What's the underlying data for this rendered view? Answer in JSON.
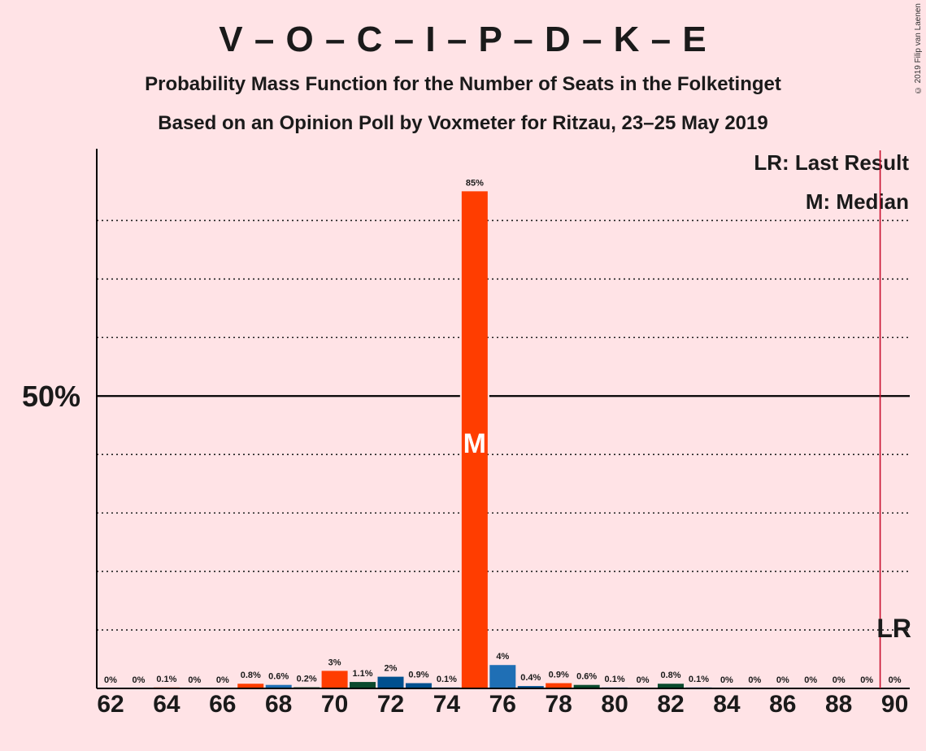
{
  "header": {
    "title": "V – O – C – I – P – D – K – E",
    "subtitle1": "Probability Mass Function for the Number of Seats in the Folketinget",
    "subtitle2": "Based on an Opinion Poll by Voxmeter for Ritzau, 23–25 May 2019",
    "copyright": "© 2019 Filip van Laenen"
  },
  "legend": {
    "last_result": "LR: Last Result",
    "median": "M: Median"
  },
  "markers": {
    "median_letter": "M",
    "last_result_letter": "LR",
    "median_seat": 75,
    "last_result_seat": 90
  },
  "colors": {
    "background": "#FFE3E6",
    "majority_line": "#000000",
    "last_result_line": "#C8102E",
    "bar_palette": [
      "#FF3D00",
      "#1F6FB5",
      "#0B4A2E",
      "#00508F"
    ]
  },
  "chart_data": {
    "type": "bar",
    "title": "V – O – C – I – P – D – K – E",
    "xlabel": "",
    "ylabel": "",
    "ylim": [
      0,
      92
    ],
    "y_tick_label": "50%",
    "majority_value": 50,
    "x_ticks": [
      62,
      64,
      66,
      68,
      70,
      72,
      74,
      76,
      78,
      80,
      82,
      84,
      86,
      88,
      90
    ],
    "gridlines": [
      10,
      20,
      30,
      40,
      60,
      70,
      80
    ],
    "categories": [
      62,
      63,
      64,
      65,
      66,
      67,
      68,
      69,
      70,
      71,
      72,
      73,
      74,
      75,
      76,
      77,
      78,
      79,
      80,
      81,
      82,
      83,
      84,
      85,
      86,
      87,
      88,
      89,
      90
    ],
    "values": [
      0,
      0,
      0.1,
      0,
      0,
      0.8,
      0.6,
      0.2,
      3,
      1.1,
      2,
      0.9,
      0.1,
      85,
      4,
      0.4,
      0.9,
      0.6,
      0.1,
      0,
      0.8,
      0.1,
      0,
      0,
      0,
      0,
      0,
      0,
      0
    ],
    "labels": [
      "0%",
      "0%",
      "0.1%",
      "0%",
      "0%",
      "0.8%",
      "0.6%",
      "0.2%",
      "3%",
      "1.1%",
      "2%",
      "0.9%",
      "0.1%",
      "85%",
      "4%",
      "0.4%",
      "0.9%",
      "0.6%",
      "0.1%",
      "0%",
      "0.8%",
      "0.1%",
      "0%",
      "0%",
      "0%",
      "0%",
      "0%",
      "0%",
      "0%"
    ],
    "bar_colors": [
      "#FF3D00",
      "#1F6FB5",
      "#FF3D00",
      "#1F6FB5",
      "#FF3D00",
      "#FF3D00",
      "#1F6FB5",
      "#0B4A2E",
      "#FF3D00",
      "#0B4A2E",
      "#00508F",
      "#00508F",
      "#1F6FB5",
      "#FF3D00",
      "#1F6FB5",
      "#00508F",
      "#FF3D00",
      "#0B4A2E",
      "#1F6FB5",
      "#FF3D00",
      "#0B4A2E",
      "#1F6FB5",
      "#FF3D00",
      "#1F6FB5",
      "#FF3D00",
      "#1F6FB5",
      "#FF3D00",
      "#1F6FB5",
      "#FF3D00"
    ],
    "grid": true,
    "legend_position": "top-right"
  }
}
